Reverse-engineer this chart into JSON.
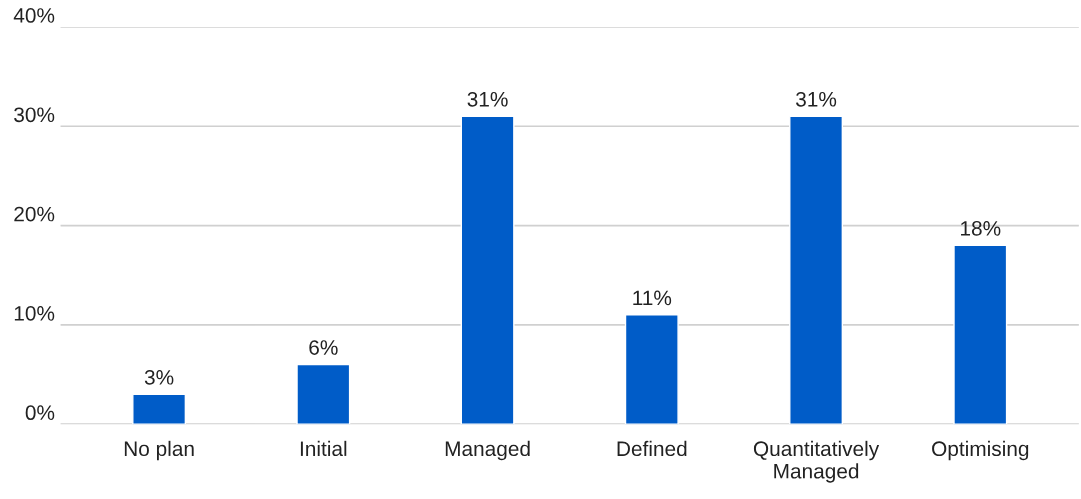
{
  "chart_data": {
    "type": "bar",
    "categories": [
      "No plan",
      "Initial",
      "Managed",
      "Defined",
      "Quantitatively Managed",
      "Optimising"
    ],
    "values": [
      3,
      6,
      31,
      11,
      31,
      18
    ],
    "value_labels": [
      "3%",
      "6%",
      "31%",
      "11%",
      "31%",
      "18%"
    ],
    "color": "#005cc8",
    "ylim": [
      0,
      40
    ],
    "yticks": [
      {
        "value": 0,
        "label": "0%"
      },
      {
        "value": 10,
        "label": "10%"
      },
      {
        "value": 20,
        "label": "20%"
      },
      {
        "value": 30,
        "label": "30%"
      },
      {
        "value": 40,
        "label": "40%"
      }
    ],
    "grid": "y"
  }
}
